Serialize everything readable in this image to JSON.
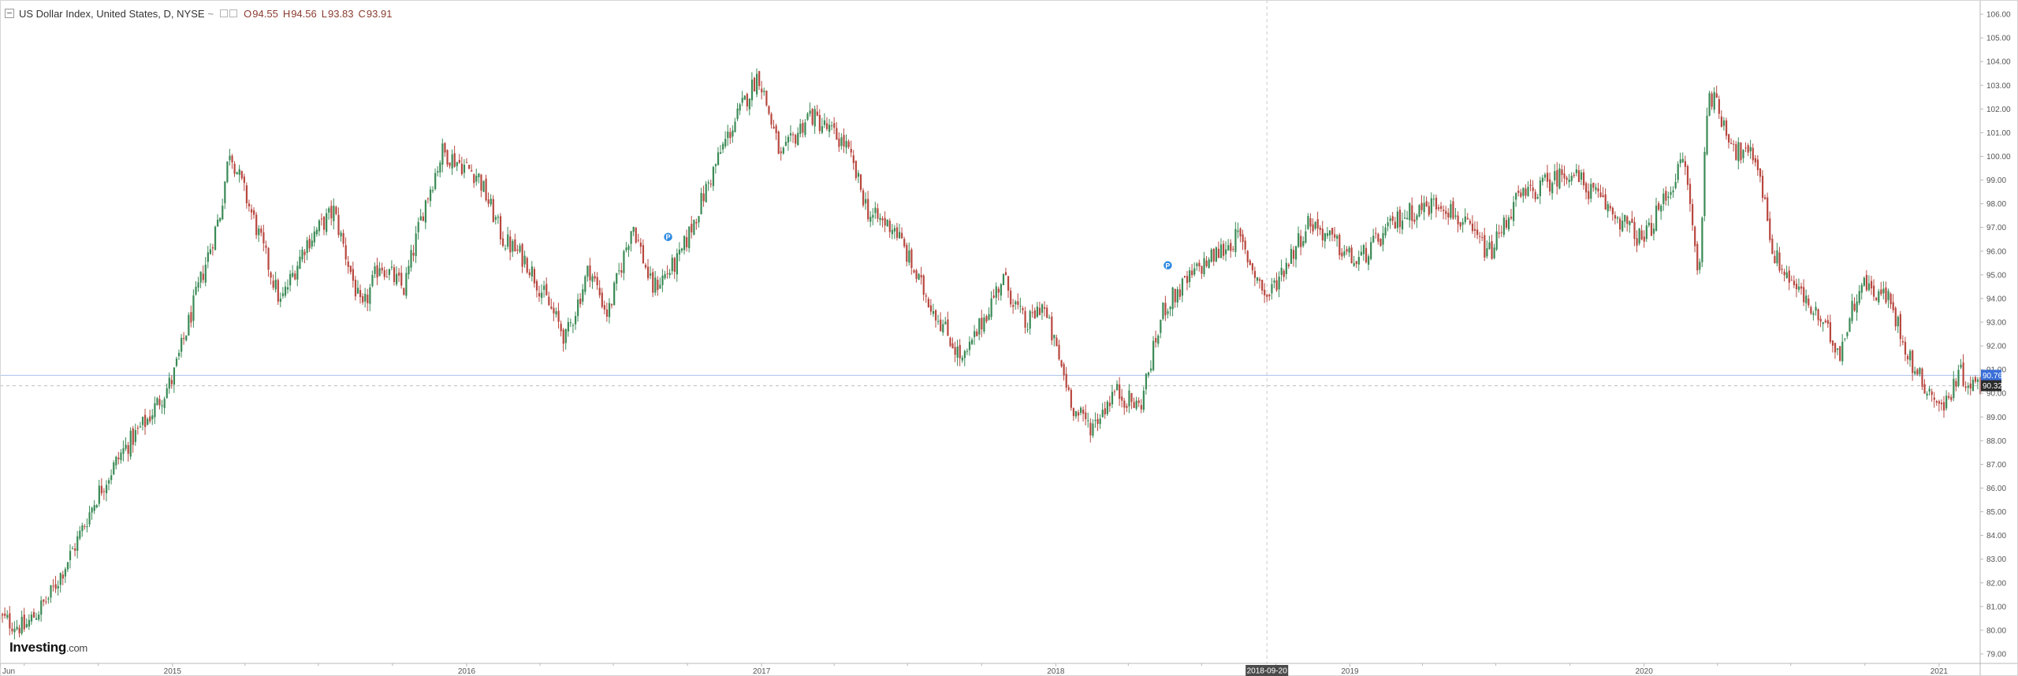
{
  "legend": {
    "title": "US Dollar Index, United States, D, NYSE",
    "separator": "~",
    "open_label": "O",
    "open": "94.55",
    "high_label": "H",
    "high": "94.56",
    "low_label": "L",
    "low": "93.83",
    "close_label": "C",
    "close": "93.91"
  },
  "logo": {
    "brand": "Investing",
    "suffix": ".com"
  },
  "crosshair": {
    "date_label": "2018-09-20"
  },
  "price_line": {
    "label": "90.76",
    "color": "#3a6fd8"
  },
  "last_price": {
    "label": "90.32",
    "color": "#2b2b2b"
  },
  "colors": {
    "up": "#3a8a55",
    "down": "#b8473f",
    "axis": "#b8b8b8",
    "grid": "#eeeeee"
  },
  "markers": [
    {
      "label": "P",
      "date": "2016-09-07",
      "value": 96.6
    },
    {
      "label": "P",
      "date": "2018-05-20",
      "value": 95.4
    }
  ],
  "chart_data": {
    "type": "candlestick",
    "title": "US Dollar Index, United States, D, NYSE",
    "ylim": [
      78.6,
      106.6
    ],
    "y_ticks": [
      "79.00",
      "80.00",
      "81.00",
      "82.00",
      "83.00",
      "84.00",
      "85.00",
      "86.00",
      "87.00",
      "88.00",
      "89.00",
      "90.00",
      "91.00",
      "92.00",
      "93.00",
      "94.00",
      "95.00",
      "96.00",
      "97.00",
      "98.00",
      "99.00",
      "100.00",
      "101.00",
      "102.00",
      "103.00",
      "104.00",
      "105.00",
      "106.00"
    ],
    "x_range": [
      "2014-06-01",
      "2021-02-21"
    ],
    "x_ticks": [
      {
        "label": "Jun",
        "date": "2014-06-01"
      },
      {
        "label": "2015",
        "date": "2015-01-01"
      },
      {
        "label": "2016",
        "date": "2016-01-01"
      },
      {
        "label": "2017",
        "date": "2017-01-01"
      },
      {
        "label": "2018",
        "date": "2018-01-01"
      },
      {
        "label": "2019",
        "date": "2019-01-01"
      },
      {
        "label": "2020",
        "date": "2020-01-01"
      },
      {
        "label": "2021",
        "date": "2021-01-01"
      }
    ],
    "grid": false,
    "series": [
      {
        "key_points": [
          [
            "2014-06-01",
            80.5
          ],
          [
            "2014-07-01",
            80.1
          ],
          [
            "2014-08-01",
            81.4
          ],
          [
            "2014-09-01",
            83.5
          ],
          [
            "2014-10-01",
            85.8
          ],
          [
            "2014-11-01",
            87.6
          ],
          [
            "2014-12-01",
            88.9
          ],
          [
            "2015-01-01",
            90.6
          ],
          [
            "2015-02-01",
            94.3
          ],
          [
            "2015-03-01",
            97.6
          ],
          [
            "2015-03-13",
            100.3
          ],
          [
            "2015-04-15",
            97.0
          ],
          [
            "2015-05-15",
            93.8
          ],
          [
            "2015-06-15",
            96.3
          ],
          [
            "2015-07-20",
            97.7
          ],
          [
            "2015-08-24",
            93.4
          ],
          [
            "2015-09-15",
            95.5
          ],
          [
            "2015-10-15",
            94.4
          ],
          [
            "2015-11-10",
            98.0
          ],
          [
            "2015-12-02",
            100.2
          ],
          [
            "2016-01-15",
            99.2
          ],
          [
            "2016-02-15",
            96.5
          ],
          [
            "2016-03-15",
            95.6
          ],
          [
            "2016-05-03",
            92.3
          ],
          [
            "2016-06-01",
            95.3
          ],
          [
            "2016-06-24",
            93.3
          ],
          [
            "2016-07-25",
            97.2
          ],
          [
            "2016-08-18",
            94.4
          ],
          [
            "2016-09-20",
            95.6
          ],
          [
            "2016-10-25",
            98.7
          ],
          [
            "2016-11-15",
            100.5
          ],
          [
            "2016-12-28",
            103.5
          ],
          [
            "2017-01-25",
            99.9
          ],
          [
            "2017-03-01",
            101.8
          ],
          [
            "2017-04-15",
            100.5
          ],
          [
            "2017-05-15",
            97.5
          ],
          [
            "2017-06-15",
            97.0
          ],
          [
            "2017-07-15",
            94.7
          ],
          [
            "2017-09-08",
            91.3
          ],
          [
            "2017-10-27",
            94.9
          ],
          [
            "2017-11-25",
            92.8
          ],
          [
            "2017-12-15",
            93.8
          ],
          [
            "2018-01-25",
            89.2
          ],
          [
            "2018-02-15",
            88.6
          ],
          [
            "2018-03-15",
            90.1
          ],
          [
            "2018-04-15",
            89.4
          ],
          [
            "2018-05-15",
            93.6
          ],
          [
            "2018-06-28",
            95.3
          ],
          [
            "2018-08-15",
            96.6
          ],
          [
            "2018-09-20",
            94.0
          ],
          [
            "2018-11-12",
            97.3
          ],
          [
            "2019-01-09",
            95.5
          ],
          [
            "2019-03-07",
            97.5
          ],
          [
            "2019-04-25",
            98.1
          ],
          [
            "2019-06-24",
            95.9
          ],
          [
            "2019-07-25",
            98.1
          ],
          [
            "2019-09-30",
            99.4
          ],
          [
            "2019-12-31",
            96.4
          ],
          [
            "2020-02-20",
            99.9
          ],
          [
            "2020-03-09",
            94.7
          ],
          [
            "2020-03-20",
            102.9
          ],
          [
            "2020-04-25",
            100.2
          ],
          [
            "2020-05-20",
            99.9
          ],
          [
            "2020-06-10",
            95.8
          ],
          [
            "2020-08-31",
            91.8
          ],
          [
            "2020-09-25",
            94.7
          ],
          [
            "2020-10-30",
            94.0
          ],
          [
            "2020-12-01",
            91.0
          ],
          [
            "2021-01-06",
            89.3
          ],
          [
            "2021-01-25",
            90.9
          ],
          [
            "2021-02-10",
            90.4
          ],
          [
            "2021-02-21",
            90.3
          ]
        ]
      }
    ]
  }
}
